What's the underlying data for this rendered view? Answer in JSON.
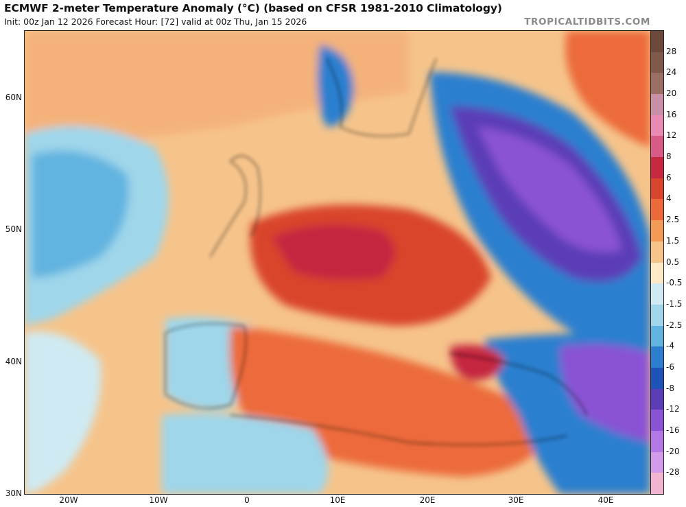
{
  "header": {
    "title": "ECMWF 2-meter Temperature Anomaly (°C) (based on CFSR 1981-2010 Climatology)",
    "subtitle": "Init: 00z Jan 12 2026   Forecast Hour: [72]   valid at 00z Thu, Jan 15 2026",
    "brand": "TROPICALTIDBITS.COM"
  },
  "axes": {
    "lat_labels": [
      "60N",
      "50N",
      "40N",
      "30N"
    ],
    "lon_labels": [
      "20W",
      "10W",
      "0",
      "10E",
      "20E",
      "30E",
      "40E"
    ]
  },
  "colorbar": {
    "labels": [
      "28",
      "24",
      "20",
      "16",
      "12",
      "8",
      "6",
      "4",
      "2.5",
      "1.5",
      "0.5",
      "-0.5",
      "-1.5",
      "-2.5",
      "-4",
      "-6",
      "-8",
      "-12",
      "-16",
      "-20",
      "-28"
    ],
    "colors": [
      "#6b4a3c",
      "#7f5a4a",
      "#9b6f63",
      "#c88fa6",
      "#e98ab4",
      "#d85a86",
      "#c5283f",
      "#d9442c",
      "#ec6a3a",
      "#f29a56",
      "#f6c48b",
      "#fde9c4",
      "#cfeaf2",
      "#9fd6ea",
      "#62b4e0",
      "#2c7fcf",
      "#1d52b6",
      "#5b3db8",
      "#8a52d4",
      "#b478e4",
      "#d39ae9",
      "#f2b4d0"
    ]
  },
  "map": {
    "anomaly_colors": {
      "strong_warm": "#c5283f",
      "warm": "#ec6a3a",
      "mild_warm": "#f6c48b",
      "near_zero": "#fde9c4",
      "mild_cold": "#9fd6ea",
      "cold": "#2c7fcf",
      "very_cold": "#5b3db8",
      "extreme_cold": "#b478e4"
    }
  }
}
